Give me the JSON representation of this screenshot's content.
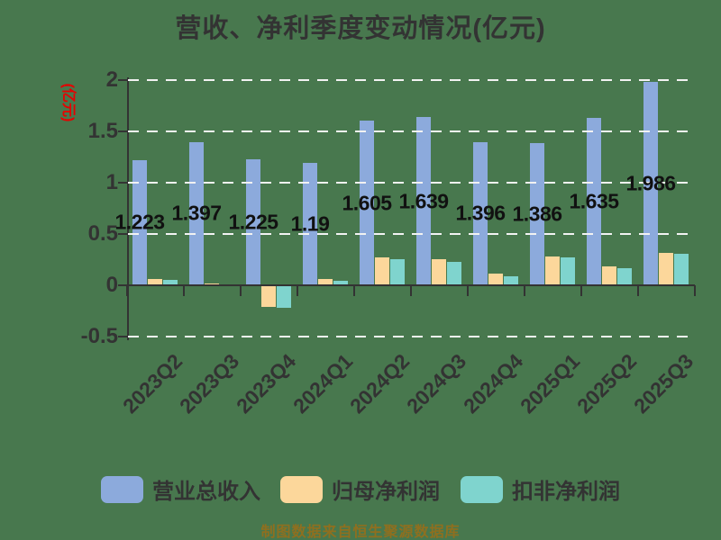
{
  "title": "营收、净利季度变动情况(亿元)",
  "footer_note": "制图数据来自恒生聚源数据库",
  "colors": {
    "background": "#48784E",
    "axis": "#333333",
    "gridline": "#F2F2F2",
    "title_text": "#333333",
    "value_label_text": "#111111",
    "y_axis_title_text": "#E60000",
    "footer_text": "#8F6F1F",
    "revenue_bar": "#8CAADC",
    "net_profit_bar": "#FCD79B",
    "deducted_profit_bar": "#7FD4CE"
  },
  "legend": {
    "items": [
      {
        "label": "营业总收入",
        "color": "#8CAADC"
      },
      {
        "label": "归母净利润",
        "color": "#FCD79B"
      },
      {
        "label": "扣非净利润",
        "color": "#7FD4CE"
      }
    ]
  },
  "chart_data": {
    "type": "bar",
    "title": "营收、净利季度变动情况(亿元)",
    "xlabel": "",
    "ylabel": "(亿元)",
    "ylim": [
      -0.5,
      2
    ],
    "y_ticks": [
      {
        "value": 2,
        "label": "2"
      },
      {
        "value": 1.5,
        "label": "1.5"
      },
      {
        "value": 1,
        "label": "1"
      },
      {
        "value": 0.5,
        "label": "0.5"
      },
      {
        "value": 0,
        "label": "0"
      },
      {
        "value": -0.5,
        "label": "-0.5"
      }
    ],
    "grid": "dashed, horizontal, drawn over bars",
    "legend_position": "bottom",
    "categories": [
      "2023Q2",
      "2023Q3",
      "2023Q4",
      "2024Q1",
      "2024Q2",
      "2024Q3",
      "2024Q4",
      "2025Q1",
      "2025Q2",
      "2025Q3"
    ],
    "series": [
      {
        "name": "营业总收入",
        "color": "#8CAADC",
        "values": [
          1.223,
          1.397,
          1.225,
          1.19,
          1.605,
          1.639,
          1.396,
          1.386,
          1.635,
          1.986
        ],
        "data_labels": [
          "1.223",
          "1.397",
          "1.225",
          "1.19",
          "1.605",
          "1.639",
          "1.396",
          "1.386",
          "1.635",
          "1.986"
        ]
      },
      {
        "name": "归母净利润",
        "color": "#FCD79B",
        "values": [
          0.06,
          0.02,
          -0.2,
          0.06,
          0.27,
          0.25,
          0.11,
          0.28,
          0.18,
          0.32
        ]
      },
      {
        "name": "扣非净利润",
        "color": "#7FD4CE",
        "values": [
          0.05,
          0.005,
          -0.21,
          0.04,
          0.25,
          0.23,
          0.09,
          0.27,
          0.17,
          0.31
        ]
      }
    ]
  }
}
